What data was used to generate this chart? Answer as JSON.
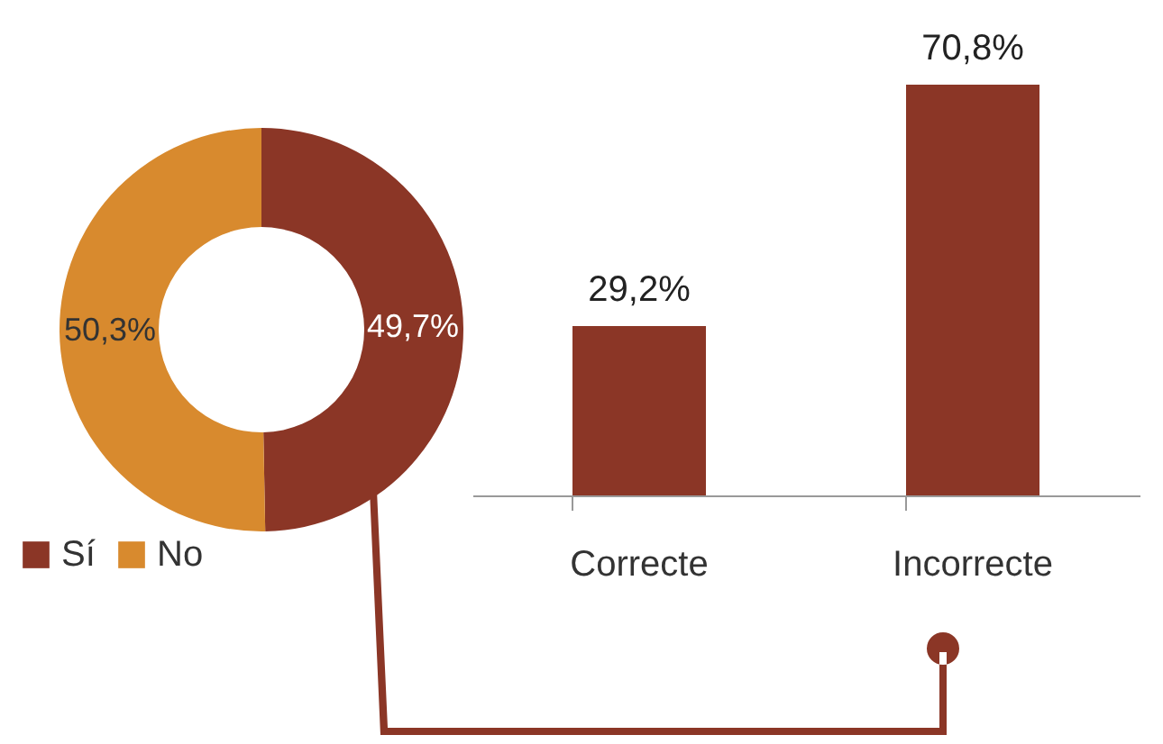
{
  "chart_data": [
    {
      "type": "donut",
      "categories": [
        "Sí",
        "No"
      ],
      "values": [
        49.7,
        50.3
      ],
      "colors": [
        "#8b3626",
        "#d88a2e"
      ],
      "value_labels": [
        "49,7%",
        "50,3%"
      ],
      "legend": "bottom left"
    },
    {
      "type": "bar",
      "categories": [
        "Correcte",
        "Incorrecte"
      ],
      "values": [
        29.2,
        70.8
      ],
      "color": "#8b3626",
      "value_labels": [
        "29,2%",
        "70,8%"
      ]
    }
  ]
}
